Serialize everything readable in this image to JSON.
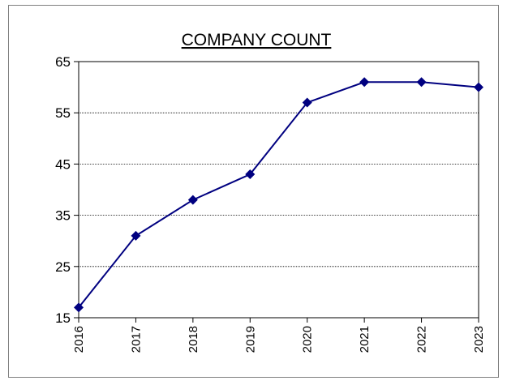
{
  "chart_data": {
    "type": "line",
    "title": "COMPANY COUNT",
    "categories": [
      "2016",
      "2017",
      "2018",
      "2019",
      "2020",
      "2021",
      "2022",
      "2023"
    ],
    "values": [
      17,
      31,
      38,
      43,
      57,
      61,
      61,
      60
    ],
    "color": "#000080",
    "ylim": [
      15,
      65
    ],
    "yticks": [
      15,
      25,
      35,
      45,
      55,
      65
    ],
    "grid": true
  }
}
